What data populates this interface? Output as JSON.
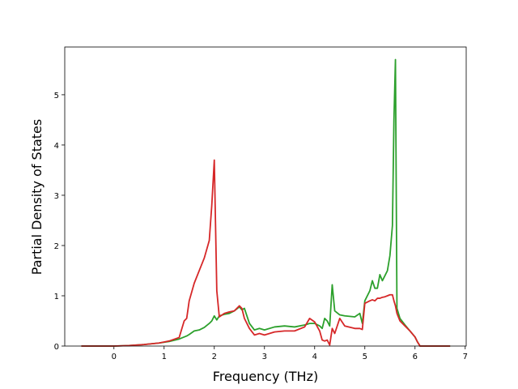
{
  "chart_data": {
    "type": "line",
    "xlabel": "Frequency (THz)",
    "ylabel": "Partial Density of States",
    "x": [
      -0.65,
      -0.3,
      0,
      0.3,
      0.6,
      0.9,
      1.1,
      1.3,
      1.4,
      1.45,
      1.5,
      1.6,
      1.7,
      1.8,
      1.9,
      1.95,
      2.0,
      2.05,
      2.1,
      2.2,
      2.3,
      2.4,
      2.5,
      2.55,
      2.6,
      2.7,
      2.8,
      2.9,
      3.0,
      3.2,
      3.4,
      3.6,
      3.8,
      3.9,
      4.0,
      4.1,
      4.15,
      4.2,
      4.25,
      4.3,
      4.35,
      4.4,
      4.5,
      4.6,
      4.8,
      4.9,
      4.95,
      5.0,
      5.1,
      5.15,
      5.2,
      5.25,
      5.3,
      5.35,
      5.4,
      5.45,
      5.5,
      5.55,
      5.58,
      5.61,
      5.64,
      5.7,
      5.8,
      5.9,
      6.0,
      6.05,
      6.1,
      6.7
    ],
    "series": [
      {
        "color": "#2ca02c",
        "values": [
          0,
          0,
          0,
          0.01,
          0.03,
          0.06,
          0.09,
          0.14,
          0.18,
          0.2,
          0.23,
          0.3,
          0.32,
          0.37,
          0.45,
          0.5,
          0.6,
          0.52,
          0.6,
          0.63,
          0.65,
          0.7,
          0.78,
          0.72,
          0.75,
          0.45,
          0.32,
          0.35,
          0.32,
          0.38,
          0.4,
          0.38,
          0.42,
          0.45,
          0.45,
          0.4,
          0.35,
          0.55,
          0.5,
          0.4,
          1.22,
          0.7,
          0.62,
          0.6,
          0.58,
          0.65,
          0.45,
          0.9,
          1.1,
          1.3,
          1.15,
          1.15,
          1.42,
          1.3,
          1.4,
          1.5,
          1.8,
          2.4,
          4.5,
          5.7,
          0.75,
          0.55,
          0.42,
          0.3,
          0.18,
          0.08,
          0,
          0
        ]
      },
      {
        "color": "#d62728",
        "values": [
          0,
          0,
          0,
          0.01,
          0.03,
          0.06,
          0.1,
          0.17,
          0.5,
          0.55,
          0.9,
          1.25,
          1.5,
          1.75,
          2.1,
          2.8,
          3.7,
          1.1,
          0.58,
          0.65,
          0.68,
          0.7,
          0.8,
          0.75,
          0.55,
          0.35,
          0.22,
          0.25,
          0.22,
          0.28,
          0.3,
          0.3,
          0.38,
          0.55,
          0.48,
          0.3,
          0.12,
          0.1,
          0.12,
          0.02,
          0.35,
          0.25,
          0.55,
          0.4,
          0.35,
          0.35,
          0.33,
          0.85,
          0.9,
          0.92,
          0.9,
          0.95,
          0.95,
          0.97,
          0.98,
          1.0,
          1.02,
          1.02,
          0.9,
          0.8,
          0.65,
          0.5,
          0.4,
          0.3,
          0.18,
          0.08,
          0,
          0
        ]
      }
    ],
    "xlim": [
      -0.98,
      7.02
    ],
    "ylim": [
      0,
      5.95
    ],
    "xticks": [
      0,
      1,
      2,
      3,
      4,
      5,
      6,
      7
    ],
    "yticks": [
      0,
      1,
      2,
      3,
      4,
      5
    ]
  }
}
